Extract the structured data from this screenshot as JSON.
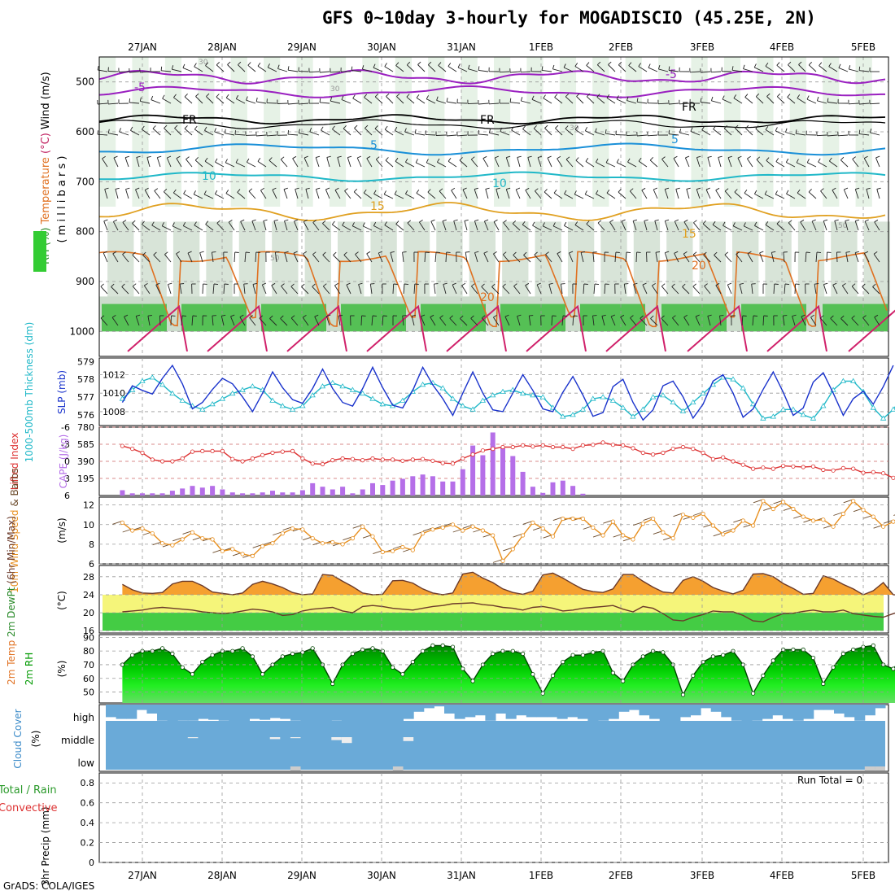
{
  "title": "GFS 0~10day 3-hourly for MOGADISCIO (45.25E, 2N)",
  "credit": "GrADS: COLA/IGES",
  "date_labels": [
    "27JAN",
    "28JAN",
    "29JAN",
    "30JAN",
    "31JAN",
    "1FEB",
    "2FEB",
    "3FEB",
    "4FEB",
    "5FEB"
  ],
  "colors": {
    "rh_green": "#33cc33",
    "wind_black": "#000000",
    "slp_blue": "#1a33cc",
    "thick_cyan": "#20b8c8",
    "li_red": "#dd3333",
    "cape_purple": "#b56fe8",
    "speed_orange": "#e89020",
    "temp_orange": "#f5a030",
    "dew_yellow": "#f5f57a",
    "rh2_green": "#00c000",
    "cloud_blue": "#6aaad8",
    "grid": "#999999"
  },
  "panels": {
    "upper": {
      "ylabel_parts": [
        "RH (%)",
        "Temperature",
        "(°C)",
        "Wind (m/s)"
      ],
      "ylabel2": "( m i l l i b a r s )",
      "yticks": [
        "500",
        "600",
        "700",
        "800",
        "900",
        "1000"
      ],
      "contour_labels": [
        {
          "text": "-5",
          "color": "#9a20c0"
        },
        {
          "text": "-5",
          "color": "#9a20c0"
        },
        {
          "text": "FR",
          "color": "#000000"
        },
        {
          "text": "FR",
          "color": "#000000"
        },
        {
          "text": "FR",
          "color": "#000000"
        },
        {
          "text": "5",
          "color": "#1a90d8"
        },
        {
          "text": "5",
          "color": "#1a90d8"
        },
        {
          "text": "10",
          "color": "#20b8c8"
        },
        {
          "text": "10",
          "color": "#20b8c8"
        },
        {
          "text": "15",
          "color": "#e0a020"
        },
        {
          "text": "15",
          "color": "#e0a020"
        },
        {
          "text": "20",
          "color": "#e07020"
        },
        {
          "text": "20",
          "color": "#e07020"
        },
        {
          "text": "30",
          "color": "#999999"
        },
        {
          "text": "30",
          "color": "#999999"
        },
        {
          "text": "30",
          "color": "#999999"
        },
        {
          "text": "50",
          "color": "#999999"
        },
        {
          "text": "50",
          "color": "#999999"
        }
      ]
    },
    "slp": {
      "ylabel_left": "1000-500mb Thickness (dm)",
      "ylabel_right": "SLP (mb)",
      "left_ticks": [
        "579",
        "578",
        "577",
        "576"
      ],
      "right_ticks": [
        "1012",
        "1010",
        "1008"
      ]
    },
    "cape": {
      "ylabel_left": "Lifted Index",
      "ylabel_right": "CAPE (J/kg)",
      "left_ticks": [
        "-6",
        "-3",
        "0",
        "3",
        "6"
      ],
      "right_ticks": [
        "780",
        "585",
        "390",
        "195"
      ]
    },
    "wind": {
      "ylabel_parts": [
        "10m Wind",
        "Speed",
        "& Barbs"
      ],
      "units": "(m/s)",
      "ticks": [
        "12",
        "10",
        "8",
        "6"
      ]
    },
    "temp": {
      "ylabel_parts": [
        "2m Temp",
        "2m DewPt",
        "(6hr Min/Max)"
      ],
      "units": "(°C)",
      "ticks": [
        "28",
        "24",
        "20",
        "16"
      ]
    },
    "rh": {
      "ylabel": "2m RH",
      "units": "(%)",
      "ticks": [
        "90",
        "80",
        "70",
        "60",
        "50"
      ]
    },
    "cloud": {
      "ylabel": "Cloud Cover",
      "units": "(%)",
      "levels": [
        "high",
        "middle",
        "low"
      ]
    },
    "precip": {
      "ylabel_parts": [
        "Total / Rain",
        "Convective",
        "3hr Precip (mm)"
      ],
      "ticks": [
        "0.8",
        "0.6",
        "0.4",
        "0.2",
        "0"
      ],
      "run_total": "Run Total = 0"
    }
  },
  "chart_data": [
    {
      "type": "line",
      "name": "slp",
      "ylabel": "SLP (mb)",
      "ylim": [
        1006.5,
        1013.8
      ],
      "x_start": "26JAN 18Z",
      "x_step_hours": 3,
      "values": [
        1009,
        1010.8,
        1010.3,
        1009.9,
        1011.6,
        1013,
        1011,
        1008.3,
        1009,
        1010.4,
        1011.6,
        1011,
        1009.6,
        1008,
        1010,
        1012.3,
        1010.6,
        1009.3,
        1008.9,
        1010.5,
        1012.6,
        1010.5,
        1009,
        1008.6,
        1010.5,
        1012.8,
        1010.6,
        1008.7,
        1008.4,
        1010.3,
        1012.8,
        1010.9,
        1009.4,
        1007.6,
        1010,
        1012.3,
        1010,
        1008.2,
        1008,
        1010,
        1012,
        1010.3,
        1008.3,
        1008,
        1010.1,
        1011.8,
        1009.8,
        1007.5,
        1007.9,
        1010.7,
        1011.5,
        1009,
        1007.1,
        1008.2,
        1010.8,
        1011.3,
        1009.6,
        1007.3,
        1008.8,
        1011.3,
        1012,
        1010,
        1007.4,
        1008.3,
        1010.4,
        1012.3,
        1010.1,
        1007.6,
        1008.4,
        1011.2,
        1012.2,
        1010,
        1007.6,
        1009.4,
        1010.2,
        1008.8,
        1010.7,
        1013
      ]
    },
    {
      "type": "line",
      "name": "thickness",
      "ylabel": "1000-500mb Thickness (dm)",
      "ylim": [
        575.4,
        579.2
      ],
      "x_start": "26JAN 18Z",
      "x_step_hours": 3,
      "values": [
        576.9,
        577.4,
        577.9,
        578.1,
        577.7,
        577.2,
        576.8,
        576.5,
        576.3,
        576.6,
        576.9,
        577.2,
        577.4,
        577.6,
        577.4,
        576.8,
        576.5,
        576.3,
        576.5,
        577.1,
        577.6,
        577.8,
        577.6,
        577.4,
        577.2,
        576.9,
        576.6,
        576.5,
        576.8,
        577.3,
        577.7,
        577.8,
        577.5,
        576.9,
        576.5,
        576.3,
        576.8,
        577.1,
        577.3,
        577.4,
        577.2,
        577.1,
        577.0,
        576.4,
        575.9,
        576.0,
        576.3,
        576.9,
        577.0,
        576.8,
        576.4,
        575.9,
        576.3,
        577.0,
        577.1,
        576.7,
        576.2,
        576.7,
        577.2,
        577.7,
        578.1,
        578.0,
        577.5,
        576.6,
        575.8,
        575.9,
        576.3,
        576.3,
        576.0,
        575.8,
        576.5,
        577.4,
        577.9,
        577.9,
        577.3,
        576.4,
        575.8,
        576.3,
        577.1,
        576.7,
        576.4,
        577.3,
        578.1,
        578.1,
        577.6,
        576.8,
        576.3,
        577.0,
        577.8,
        578.5,
        578.2,
        577.4,
        576.6,
        576.0,
        576.3
      ]
    },
    {
      "type": "line",
      "name": "lifted_index",
      "ylabel": "Lifted Index",
      "ylim": [
        6,
        -6
      ],
      "x_start": "26JAN 18Z",
      "x_step_hours": 3,
      "values": [
        -2.7,
        -2.2,
        -1.5,
        -0.3,
        0,
        0,
        -0.5,
        -1.7,
        -1.8,
        -1.8,
        -1.8,
        -0.4,
        0,
        -0.5,
        -1.1,
        -1.5,
        -1.7,
        -1.8,
        -0.5,
        0.4,
        0.5,
        -0.2,
        -0.5,
        -0.4,
        -0.2,
        -0.5,
        -0.3,
        -0.3,
        -0.1,
        -0.3,
        -0.4,
        -0.1,
        0.3,
        0.4,
        -0.5,
        -1.2,
        -1.9,
        -2.2,
        -2.5,
        -2.5,
        -2.8,
        -2.6,
        -2.8,
        -2.5,
        -2.5,
        -2.2,
        -2.8,
        -2.9,
        -3.3,
        -2.9,
        -2.8,
        -2.3,
        -1.5,
        -1.2,
        -1.5,
        -2.2,
        -2.5,
        -2.2,
        -1.5,
        -0.4,
        -0.7,
        0,
        0.6,
        1.3,
        1.1,
        1.3,
        0.8,
        0.9,
        1.0,
        0.9,
        1.5,
        1.6,
        1.2,
        1.3,
        2.0,
        1.9,
        2.1,
        2.9,
        3.7,
        3.2,
        2.4,
        2.2,
        1.8,
        0.3,
        -0.5,
        -0.5,
        0.1,
        1.3,
        2.2,
        1.5,
        1.6,
        1.9,
        0.8,
        1.4,
        1.8,
        1.7,
        1.6,
        2.4
      ]
    },
    {
      "type": "bar",
      "name": "cape",
      "ylabel": "CAPE (J/kg)",
      "ylim": [
        0,
        780
      ],
      "x_start": "26JAN 18Z",
      "x_step_hours": 3,
      "values": [
        60,
        25,
        25,
        25,
        25,
        55,
        80,
        110,
        90,
        110,
        70,
        35,
        25,
        25,
        35,
        55,
        35,
        35,
        60,
        140,
        100,
        70,
        100,
        25,
        70,
        140,
        120,
        170,
        190,
        220,
        240,
        220,
        160,
        160,
        300,
        570,
        460,
        720,
        540,
        450,
        270,
        100,
        30,
        150,
        170,
        110,
        20,
        0,
        0,
        0,
        0,
        0,
        0,
        0,
        0,
        0,
        0,
        0,
        0,
        0,
        0,
        0,
        0,
        0,
        0,
        0,
        0,
        0,
        0,
        0,
        0,
        0,
        0,
        0,
        0,
        0,
        0,
        0,
        0,
        0,
        0,
        0,
        0,
        0,
        40,
        20,
        0,
        0,
        0,
        0,
        0,
        0,
        0,
        0,
        0,
        0,
        0
      ]
    },
    {
      "type": "line",
      "name": "wind_speed",
      "ylabel": "10m Wind Speed (m/s)",
      "ylim": [
        6,
        12.8
      ],
      "x_start": "26JAN 18Z",
      "x_step_hours": 3,
      "values": [
        10.2,
        9.4,
        9.6,
        9.1,
        8.1,
        7.9,
        8.5,
        9.2,
        8.6,
        8.5,
        7.3,
        7.5,
        7.0,
        6.8,
        7.8,
        8.1,
        9.1,
        9.6,
        9.5,
        8.6,
        8.1,
        8.2,
        8.0,
        8.6,
        9.8,
        8.8,
        7.2,
        7.3,
        7.7,
        7.4,
        9.1,
        9.5,
        9.7,
        10.0,
        9.4,
        9.8,
        9.4,
        8.9,
        6.3,
        7.5,
        8.9,
        10.2,
        9.6,
        8.8,
        10.6,
        10.6,
        10.6,
        9.7,
        8.9,
        10.3,
        8.9,
        8.5,
        10.1,
        10.6,
        9.2,
        8.6,
        11.0,
        10.7,
        11.1,
        9.9,
        9.0,
        9.4,
        10.4,
        9.9,
        12.4,
        11.6,
        12.3,
        11.6,
        10.8,
        10.4,
        10.5,
        9.8,
        11.1,
        12.4,
        11.5,
        10.8,
        9.8,
        10.3,
        11.1,
        10.7,
        9.5,
        8.6,
        10.0,
        12.4,
        10.6,
        9.0,
        8.8,
        10.2,
        10.0,
        9.2,
        9.7,
        10.4,
        8.8,
        8.2,
        9.4,
        10.2,
        9.5,
        9.2,
        10.2,
        8.1,
        6.8,
        8.0
      ]
    },
    {
      "type": "area",
      "name": "temperature",
      "ylabel": "2m Temp (°C)",
      "ylim": [
        15.5,
        30.5
      ],
      "x_start": "26JAN 18Z",
      "x_step_hours": 3,
      "values": [
        26.3,
        25.1,
        24.4,
        24.3,
        24.5,
        26.4,
        27.0,
        27.0,
        26.0,
        24.6,
        24.3,
        24.0,
        24.4,
        26.3,
        27.0,
        26.4,
        25.6,
        24.5,
        24.0,
        24.2,
        28.5,
        28.3,
        27.0,
        25.8,
        24.4,
        24.0,
        24.1,
        27.1,
        27.2,
        26.6,
        25.3,
        24.4,
        24.0,
        24.4,
        28.6,
        29.0,
        27.7,
        26.7,
        25.3,
        24.5,
        24.1,
        24.8,
        28.4,
        28.8,
        27.7,
        26.4,
        25.2,
        24.7,
        24.5,
        25.3,
        28.5,
        28.5,
        27.0,
        25.7,
        24.6,
        24.4,
        27.2,
        28.0,
        27.0,
        25.6,
        24.8,
        24.2,
        25.0,
        28.6,
        28.7,
        28.0,
        26.5,
        25.4,
        24.1,
        24.3,
        28.2,
        27.5,
        26.3,
        25.3,
        24.0,
        24.9,
        26.7,
        24.0,
        23.9,
        23.4,
        24.0,
        26.0,
        25.0
      ]
    },
    {
      "type": "line",
      "name": "dewpoint",
      "ylabel": "2m DewPt (°C)",
      "ylim": [
        15.5,
        30.5
      ],
      "x_start": "26JAN 18Z",
      "x_step_hours": 3,
      "values": [
        20.2,
        20.4,
        20.6,
        21.0,
        21.2,
        21.0,
        20.8,
        20.6,
        20.2,
        20.0,
        19.8,
        20.0,
        20.4,
        20.8,
        20.6,
        20.2,
        19.4,
        19.6,
        20.4,
        20.8,
        21.0,
        21.2,
        20.4,
        20.0,
        21.4,
        21.6,
        21.4,
        21.0,
        20.8,
        20.6,
        21.0,
        21.4,
        21.6,
        22.0,
        22.1,
        22.2,
        21.8,
        21.6,
        21.2,
        21.0,
        20.6,
        21.2,
        21.4,
        21.0,
        20.4,
        20.6,
        21.0,
        21.2,
        21.4,
        21.6,
        20.8,
        20.2,
        21.4,
        21.0,
        19.8,
        18.4,
        18.2,
        19.0,
        19.6,
        20.4,
        20.2,
        20.2,
        19.4,
        18.2,
        18.0,
        19.0,
        19.8,
        19.9,
        20.3,
        20.6,
        20.2,
        20.2,
        20.6,
        19.8,
        19.5,
        19.2,
        19.0,
        19.8,
        20.6,
        20.2,
        19.6,
        19.2
      ]
    },
    {
      "type": "area",
      "name": "rh_2m",
      "ylabel": "2m RH (%)",
      "ylim": [
        42,
        92
      ],
      "x_start": "26JAN 18Z",
      "x_step_hours": 3,
      "values": [
        70,
        77,
        80,
        80,
        82,
        78,
        68,
        63,
        72,
        77,
        80,
        80,
        82,
        76,
        63,
        70,
        76,
        78,
        79,
        82,
        70,
        56,
        70,
        78,
        81,
        82,
        80,
        68,
        63,
        72,
        80,
        84,
        84,
        83,
        67,
        58,
        70,
        78,
        80,
        80,
        78,
        63,
        49,
        62,
        72,
        77,
        77,
        79,
        80,
        64,
        58,
        70,
        76,
        80,
        79,
        70,
        48,
        62,
        72,
        76,
        77,
        80,
        70,
        49,
        62,
        73,
        81,
        81,
        81,
        75,
        56,
        68,
        78,
        81,
        83,
        84,
        70,
        67,
        76,
        82,
        84,
        84,
        76,
        64,
        68
      ]
    },
    {
      "type": "area",
      "name": "cloud_cover",
      "ylabel": "Cloud Cover (%)",
      "series": [
        {
          "name": "high",
          "values": [
            70,
            80,
            80,
            30,
            50,
            90,
            100,
            90,
            90,
            80,
            85,
            90,
            100,
            95,
            80,
            85,
            75,
            80,
            90,
            95,
            100,
            100,
            90,
            100,
            100,
            100,
            100,
            100,
            100,
            80,
            40,
            20,
            10,
            50,
            80,
            70,
            60,
            90,
            50,
            80,
            60,
            70,
            70,
            70,
            80,
            70,
            80,
            100,
            90,
            80,
            40,
            30,
            60,
            80,
            100,
            100,
            70,
            60,
            20,
            40,
            70,
            90,
            100,
            90,
            80,
            60,
            80,
            90,
            80,
            30,
            30,
            50,
            70,
            90,
            60,
            20
          ]
        },
        {
          "name": "middle",
          "values": [
            0,
            0,
            0,
            0,
            0,
            0,
            0,
            0,
            10,
            0,
            0,
            0,
            0,
            0,
            0,
            0,
            20,
            0,
            10,
            0,
            0,
            0,
            30,
            60,
            0,
            0,
            0,
            0,
            0,
            40,
            0,
            0,
            0,
            0,
            0,
            0,
            0,
            0,
            0,
            0,
            0,
            0,
            0,
            0,
            0,
            0,
            0,
            0,
            0,
            0,
            0,
            0,
            0,
            0,
            0,
            0,
            0,
            0,
            0,
            0,
            0,
            0,
            0,
            0,
            0,
            0,
            0,
            0,
            0,
            0,
            0,
            0,
            0,
            0,
            0,
            0
          ]
        },
        {
          "name": "low",
          "values": [
            0,
            0,
            0,
            0,
            0,
            0,
            0,
            0,
            0,
            0,
            0,
            0,
            0,
            0,
            0,
            0,
            0,
            0,
            20,
            0,
            0,
            0,
            0,
            0,
            0,
            0,
            0,
            0,
            10,
            0,
            0,
            0,
            0,
            0,
            0,
            0,
            0,
            0,
            0,
            0,
            0,
            0,
            0,
            0,
            0,
            0,
            0,
            0,
            0,
            0,
            0,
            0,
            0,
            0,
            0,
            0,
            0,
            0,
            0,
            0,
            0,
            0,
            0,
            0,
            0,
            0,
            0,
            0,
            0,
            0,
            0,
            0,
            0,
            0,
            30,
            10
          ]
        }
      ]
    },
    {
      "type": "bar",
      "name": "precip_3hr",
      "ylabel": "3hr Precip (mm)",
      "ylim": [
        0,
        0.9
      ],
      "values": [
        0
      ],
      "run_total": 0
    }
  ]
}
